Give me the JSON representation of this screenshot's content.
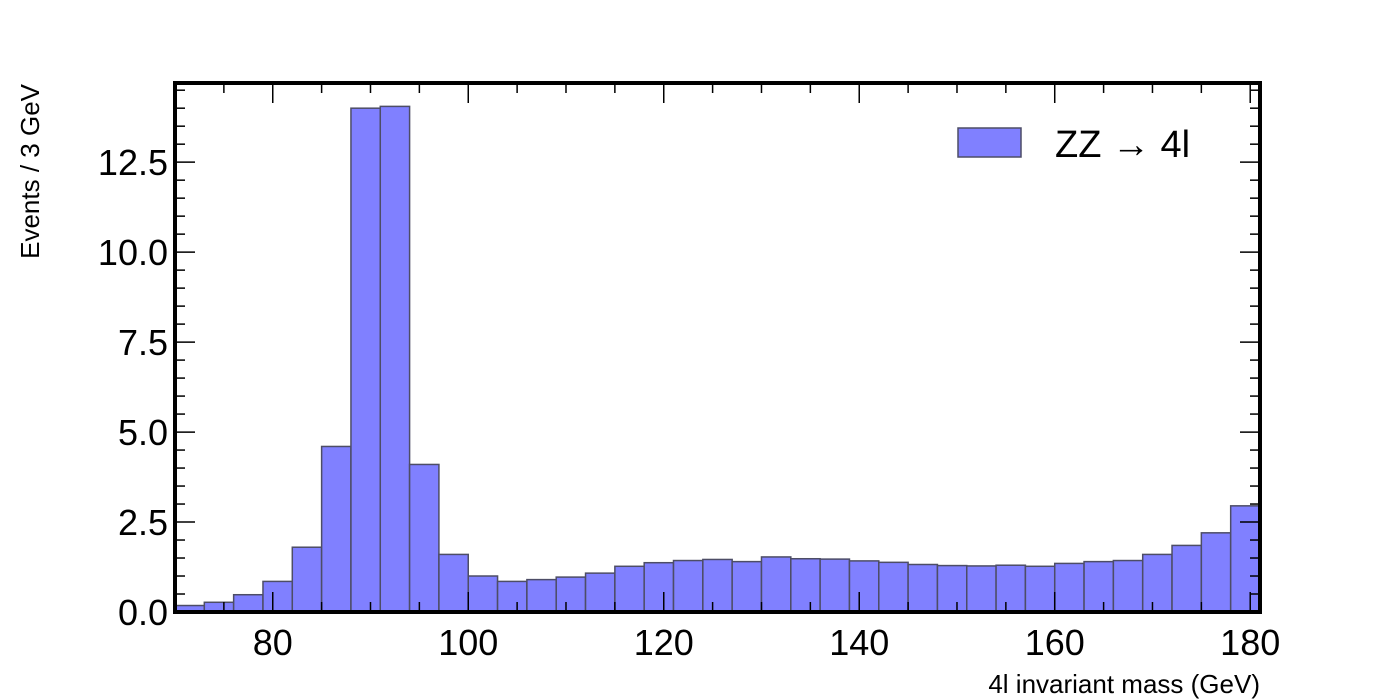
{
  "chart_data": {
    "type": "bar",
    "xlabel": "4l invariant mass (GeV)",
    "ylabel": "Events / 3 GeV",
    "xlim": [
      70,
      181
    ],
    "ylim": [
      0,
      14.7
    ],
    "x_ticks": [
      80,
      100,
      120,
      140,
      160,
      180
    ],
    "x_tick_labels": [
      "80",
      "100",
      "120",
      "140",
      "160",
      "180"
    ],
    "y_ticks": [
      0,
      2.5,
      5,
      7.5,
      10,
      12.5
    ],
    "y_tick_labels": [
      "0.0",
      "2.5",
      "5.0",
      "7.5",
      "10.0",
      "12.5"
    ],
    "bin_width": 3,
    "bin_edges": [
      70,
      73,
      76,
      79,
      82,
      85,
      88,
      91,
      94,
      97,
      100,
      103,
      106,
      109,
      112,
      115,
      118,
      121,
      124,
      127,
      130,
      133,
      136,
      139,
      142,
      145,
      148,
      151,
      154,
      157,
      160,
      163,
      166,
      169,
      172,
      175,
      178,
      181
    ],
    "series": [
      {
        "name": "ZZ → 4l",
        "color": "#8080ff",
        "edgecolor": "#4d4d66",
        "values": [
          0.18,
          0.27,
          0.48,
          0.85,
          1.8,
          4.6,
          14.0,
          14.05,
          4.1,
          1.6,
          1.0,
          0.85,
          0.9,
          0.97,
          1.08,
          1.27,
          1.37,
          1.43,
          1.46,
          1.4,
          1.53,
          1.48,
          1.47,
          1.42,
          1.38,
          1.32,
          1.29,
          1.28,
          1.3,
          1.27,
          1.35,
          1.4,
          1.43,
          1.6,
          1.85,
          2.2,
          2.95
        ]
      }
    ],
    "legend": {
      "position": "top-right"
    },
    "grid": false
  }
}
